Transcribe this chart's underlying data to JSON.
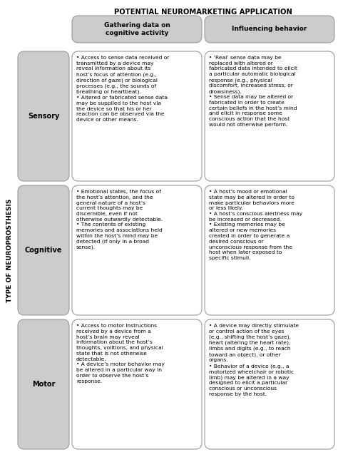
{
  "title": "POTENTIAL NEUROMARKETING APPLICATION",
  "col_headers": [
    "Gathering data on\ncognitive activity",
    "Influencing behavior"
  ],
  "row_labels": [
    "Sensory",
    "Cognitive",
    "Motor"
  ],
  "side_label": "TYPE OF NEUROPROSTHESIS",
  "background_color": "#ffffff",
  "header_bg": "#cccccc",
  "row_label_bg": "#cccccc",
  "cell_bg": "#ffffff",
  "border_color": "#999999",
  "cells": [
    [
      "• Access to sense data received or\ntransmitted by a device may\nreveal information about its\nhost’s focus of attention (e.g.,\ndirection of gaze) or biological\nprocesses (e.g., the sounds of\nbreathing or heartbeat).\n• Altered or fabricated sense data\nmay be supplied to the host via\nthe device so that his or her\nreaction can be observed via the\ndevice or other means.",
      "• ‘Real’ sense data may be\nreplaced with altered or\nfabricated data intended to elicit\na particular automatic biological\nresponse (e.g., physical\ndiscomfort, increased stress, or\ndrowsiness).\n• Sense data may be altered or\nfabricated in order to create\ncertain beliefs in the host’s mind\nand elicit in response some\nconscious action that the host\nwould not otherwise perform."
    ],
    [
      "• Emotional states, the focus of\nthe host’s attention, and the\ngeneral nature of a host’s\ncurrent thoughts may be\ndiscernible, even if not\notherwise outwardly detectable.\n• The contents of existing\nmemories and associations held\nwithin the host’s mind may be\ndetected (if only in a broad\nsense).",
      "• A host’s mood or emotional\nstate may be altered in order to\nmake particular behaviors more\nor less likely.\n• A host’s conscious alertness may\nbe increased or decreased.\n• Existing memories may be\naltered or new memories\ncreated in order to generate a\ndesired conscious or\nunconscious response from the\nhost when later exposed to\nspecific stimuli."
    ],
    [
      "• Access to motor instructions\nreceived by a device from a\nhost’s brain may reveal\ninformation about the host’s\nthoughts, volitions, and physical\nstate that is not otherwise\ndetectable.\n• A device’s motor behavior may\nbe altered in a particular way in\norder to observe the host’s\nresponse.",
      "• A device may directly stimulate\nor control action of the eyes\n(e.g., shifting the host’s gaze),\nheart (altering the heart rate),\nlimbs and digits (e.g., to reach\ntoward an object), or other\norgans.\n• Behavior of a device (e.g., a\nmotorized wheelchair or robotic\nlimb) may be altered in a way\ndesigned to elicit a particular\nconscious or unconscious\nresponse by the host."
    ]
  ]
}
